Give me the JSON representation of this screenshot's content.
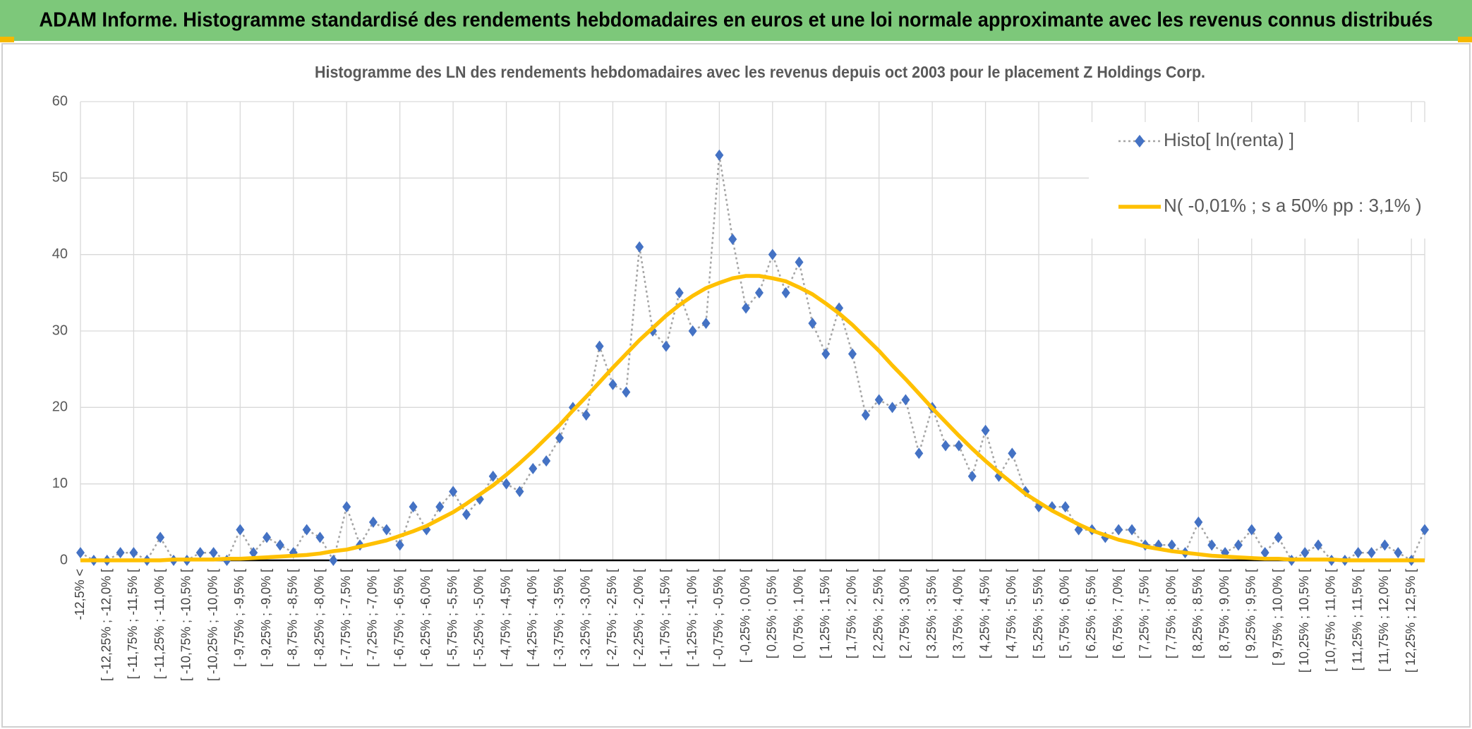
{
  "header": {
    "title": "ADAM Informe. Histogramme standardisé des rendements hebdomadaires en euros et une loi normale approximante avec les revenus connus distribués"
  },
  "chart_data": {
    "type": "line",
    "title": "Histogramme des LN des rendements hebdomadaires avec les revenus depuis oct 2003 pour le placement Z Holdings Corp.",
    "categories": [
      "-12,5% <",
      null,
      "[ -12,25% ; -12,0% [",
      null,
      "[ -11,75% ; -11,5% [",
      null,
      "[ -11,25% ; -11,0% [",
      null,
      "[ -10,75% ; -10,5% [",
      null,
      "[ -10,25% ; -10,0% [",
      null,
      "[ -9,75% ; -9,5% [",
      null,
      "[ -9,25% ; -9,0% [",
      null,
      "[ -8,75% ; -8,5% [",
      null,
      "[ -8,25% ; -8,0% [",
      null,
      "[ -7,75% ; -7,5% [",
      null,
      "[ -7,25% ; -7,0% [",
      null,
      "[ -6,75% ; -6,5% [",
      null,
      "[ -6,25% ; -6,0% [",
      null,
      "[ -5,75% ; -5,5% [",
      null,
      "[ -5,25% ; -5,0% [",
      null,
      "[ -4,75% ; -4,5% [",
      null,
      "[ -4,25% ; -4,0% [",
      null,
      "[ -3,75% ; -3,5% [",
      null,
      "[ -3,25% ; -3,0% [",
      null,
      "[ -2,75% ; -2,5% [",
      null,
      "[ -2,25% ; -2,0% [",
      null,
      "[ -1,75% ; -1,5% [",
      null,
      "[ -1,25% ; -1,0% [",
      null,
      "[ -0,75% ; -0,5% [",
      null,
      "[ -0,25% ; 0,0% [",
      null,
      "[ 0,25% ; 0,5% [",
      null,
      "[ 0,75% ; 1,0% [",
      null,
      "[ 1,25% ; 1,5% [",
      null,
      "[ 1,75% ; 2,0% [",
      null,
      "[ 2,25% ; 2,5% [",
      null,
      "[ 2,75% ; 3,0% [",
      null,
      "[ 3,25% ; 3,5% [",
      null,
      "[ 3,75% ; 4,0% [",
      null,
      "[ 4,25% ; 4,5% [",
      null,
      "[ 4,75% ; 5,0% [",
      null,
      "[ 5,25% ; 5,5% [",
      null,
      "[ 5,75% ; 6,0% [",
      null,
      "[ 6,25% ; 6,5% [",
      null,
      "[ 6,75% ; 7,0% [",
      null,
      "[ 7,25% ; 7,5% [",
      null,
      "[ 7,75% ; 8,0% [",
      null,
      "[ 8,25% ; 8,5% [",
      null,
      "[ 8,75% ; 9,0% [",
      null,
      "[ 9,25% ; 9,5% [",
      null,
      "[ 9,75% ; 10,0% [",
      null,
      "[ 10,25% ; 10,5% [",
      null,
      "[ 10,75% ; 11,0% [",
      null,
      "[ 11,25% ; 11,5% [",
      null,
      "[ 11,75% ; 12,0% [",
      null,
      "[ 12,25% ; 12,5% [",
      null
    ],
    "series": [
      {
        "name": "Histo[ ln(renta) ]",
        "color": "#4472c4",
        "line_color": "#a5a5a5",
        "line_style": "dotted",
        "marker": "diamond",
        "values": [
          1,
          0,
          0,
          1,
          1,
          0,
          3,
          0,
          0,
          1,
          1,
          0,
          4,
          1,
          3,
          2,
          1,
          4,
          3,
          0,
          7,
          2,
          5,
          4,
          2,
          7,
          4,
          7,
          9,
          6,
          8,
          11,
          10,
          9,
          12,
          13,
          16,
          20,
          19,
          28,
          23,
          22,
          41,
          30,
          28,
          35,
          30,
          31,
          53,
          42,
          33,
          35,
          40,
          35,
          39,
          31,
          27,
          33,
          27,
          19,
          21,
          20,
          21,
          14,
          20,
          15,
          15,
          11,
          17,
          11,
          14,
          9,
          7,
          7,
          7,
          4,
          4,
          3,
          4,
          4,
          2,
          2,
          2,
          1,
          5,
          2,
          1,
          2,
          4,
          1,
          3,
          0,
          1,
          2,
          0,
          0,
          1,
          1,
          2,
          1,
          0,
          4
        ]
      },
      {
        "name": "N( -0,01% ; s a 50% pp : 3,1% )",
        "color": "#ffc000",
        "line_style": "solid",
        "marker": "none",
        "values": [
          0,
          0,
          0,
          0,
          0,
          0,
          0,
          0.1,
          0.1,
          0.1,
          0.1,
          0.2,
          0.2,
          0.3,
          0.4,
          0.5,
          0.6,
          0.7,
          0.9,
          1.2,
          1.4,
          1.8,
          2.2,
          2.6,
          3.2,
          3.8,
          4.5,
          5.4,
          6.3,
          7.4,
          8.6,
          9.8,
          11.2,
          12.7,
          14.3,
          16,
          17.7,
          19.6,
          21.4,
          23.3,
          25.2,
          27,
          28.8,
          30.4,
          32,
          33.4,
          34.6,
          35.6,
          36.3,
          36.9,
          37.2,
          37.2,
          36.9,
          36.5,
          35.7,
          34.8,
          33.6,
          32.3,
          30.8,
          29.1,
          27.4,
          25.5,
          23.7,
          21.8,
          19.9,
          18.1,
          16.3,
          14.6,
          13,
          11.5,
          10.1,
          8.7,
          7.6,
          6.5,
          5.6,
          4.7,
          3.9,
          3.3,
          2.7,
          2.3,
          1.8,
          1.5,
          1.2,
          1,
          0.8,
          0.6,
          0.5,
          0.4,
          0.3,
          0.2,
          0.2,
          0.1,
          0.1,
          0.1,
          0.1,
          0,
          0,
          0,
          0,
          0,
          0,
          0
        ]
      }
    ],
    "ylim": [
      0,
      60
    ],
    "yticks": [
      0,
      10,
      20,
      30,
      40,
      50,
      60
    ],
    "grid": true,
    "legend": "top-right"
  }
}
